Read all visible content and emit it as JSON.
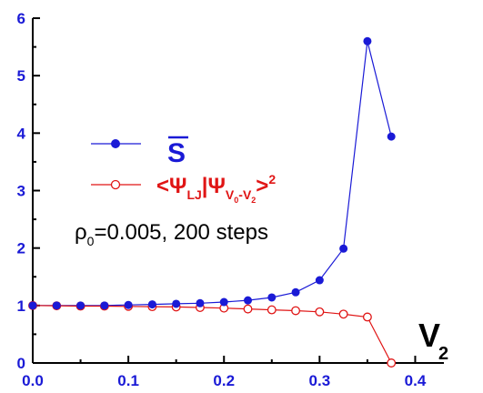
{
  "chart_data": {
    "type": "line",
    "xlim": [
      0,
      0.43
    ],
    "ylim": [
      0,
      6
    ],
    "x_ticks": [
      "0.0",
      "0.1",
      "0.2",
      "0.3",
      "0.4"
    ],
    "y_ticks": [
      "0",
      "1",
      "2",
      "3",
      "4",
      "5",
      "6"
    ],
    "xlabel": "V",
    "xlabel_sub": "2",
    "grid": false,
    "colors": {
      "series_s": "#1a1ad6",
      "series_overlap": "#e01515",
      "axis": "#000000"
    },
    "series": [
      {
        "name": "S̅",
        "marker": "filled-circle",
        "x": [
          0.0,
          0.025,
          0.05,
          0.075,
          0.1,
          0.125,
          0.15,
          0.175,
          0.2,
          0.225,
          0.25,
          0.275,
          0.3,
          0.325,
          0.35,
          0.375
        ],
        "values": [
          1.0,
          1.0,
          1.0,
          1.0,
          1.01,
          1.02,
          1.03,
          1.04,
          1.06,
          1.09,
          1.14,
          1.23,
          1.44,
          1.99,
          5.6,
          3.94
        ]
      },
      {
        "name": "<ΨLJ|ΨV0-V2>2",
        "marker": "open-circle",
        "x": [
          0.0,
          0.025,
          0.05,
          0.075,
          0.1,
          0.125,
          0.15,
          0.175,
          0.2,
          0.225,
          0.25,
          0.275,
          0.3,
          0.325,
          0.35,
          0.375
        ],
        "values": [
          1.0,
          0.995,
          0.99,
          0.99,
          0.985,
          0.98,
          0.975,
          0.965,
          0.955,
          0.94,
          0.925,
          0.91,
          0.89,
          0.85,
          0.8,
          0.0
        ]
      }
    ],
    "legend": {
      "position": "middle-left",
      "s_label": "S",
      "overlap_label": {
        "open": "<Ψ",
        "sub1": "LJ",
        "mid": "|Ψ",
        "sub2_main": "V",
        "sub2_a": "0",
        "sub2_dash": "-V",
        "sub2_b": "2",
        "close": ">",
        "sup": "2"
      }
    },
    "annotation": {
      "rho": "ρ",
      "rho_sub": "0",
      "rest": "=0.005, 200 steps"
    }
  }
}
